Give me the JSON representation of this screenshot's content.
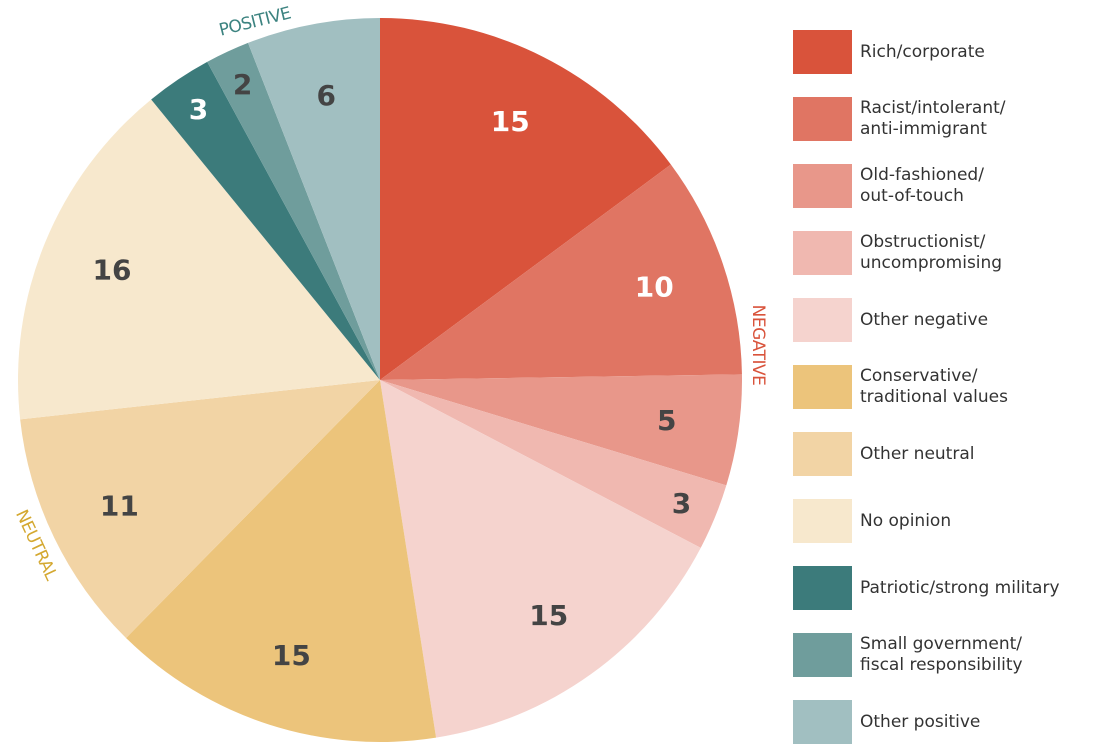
{
  "chart_data": {
    "type": "pie",
    "annotations": [
      {
        "text": "POSITIVE",
        "color": "#3c8380"
      },
      {
        "text": "NEGATIVE",
        "color": "#d9533b"
      },
      {
        "text": "NEUTRAL",
        "color": "#d4a830"
      }
    ],
    "categories": [
      "Rich/corporate",
      "Racist/intolerant/\nanti-immigrant",
      "Old-fashioned/\nout-of-touch",
      "Obstructionist/\nuncompromising",
      "Other negative",
      "Conservative/\ntraditional values",
      "Other neutral",
      "No opinion",
      "Patriotic/strong military",
      "Small government/\nfiscal responsibility",
      "Other positive"
    ],
    "values": [
      15,
      10,
      5,
      3,
      15,
      15,
      11,
      16,
      3,
      2,
      6
    ],
    "colors": [
      "#d9533b",
      "#e07563",
      "#e8978a",
      "#f0b8b0",
      "#f5d3ce",
      "#ecc47b",
      "#f2d4a5",
      "#f7e8cd",
      "#3c7b7b",
      "#6f9d9c",
      "#a1bfc1"
    ],
    "label_colors": [
      "#ffffff",
      "#ffffff",
      "#444444",
      "#444444",
      "#444444",
      "#444444",
      "#444444",
      "#444444",
      "#ffffff",
      "#444444",
      "#444444"
    ]
  }
}
